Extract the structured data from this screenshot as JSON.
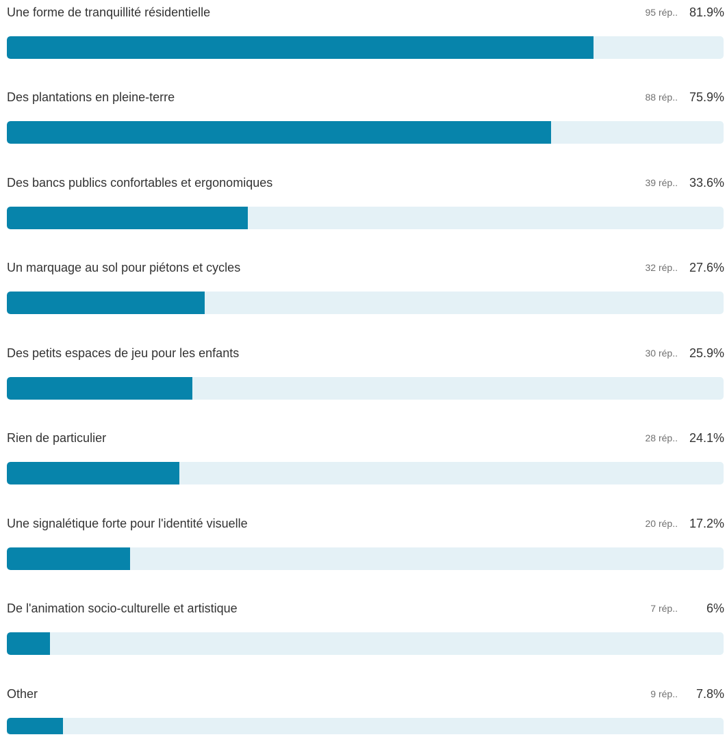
{
  "colors": {
    "bar_fill": "#0784ab",
    "bar_track": "#e4f1f6",
    "label_text": "#333333",
    "count_text": "#707070"
  },
  "chart_data": {
    "type": "bar",
    "orientation": "horizontal",
    "categories": [
      "Une forme de tranquillité résidentielle",
      "Des plantations en pleine-terre",
      "Des bancs publics confortables et ergonomiques",
      "Un marquage au sol pour piétons et cycles",
      "Des petits espaces de jeu pour les enfants",
      "Rien de particulier",
      "Une signalétique forte pour l'identité visuelle",
      "De l'animation socio-culturelle et artistique",
      "Other"
    ],
    "values": [
      81.9,
      75.9,
      33.6,
      27.6,
      25.9,
      24.1,
      17.2,
      6,
      7.8
    ],
    "counts": [
      95,
      88,
      39,
      32,
      30,
      28,
      20,
      7,
      9
    ],
    "xlim": [
      0,
      100
    ],
    "grid": false,
    "legend": "none"
  },
  "items": [
    {
      "label": "Une forme de tranquillité résidentielle",
      "count_text": "95 rép..",
      "pct_text": "81.9%",
      "pct": 81.9
    },
    {
      "label": "Des plantations en pleine-terre",
      "count_text": "88 rép..",
      "pct_text": "75.9%",
      "pct": 75.9
    },
    {
      "label": "Des bancs publics confortables et ergonomiques",
      "count_text": "39 rép..",
      "pct_text": "33.6%",
      "pct": 33.6
    },
    {
      "label": "Un marquage au sol pour piétons et cycles",
      "count_text": "32 rép..",
      "pct_text": "27.6%",
      "pct": 27.6
    },
    {
      "label": "Des petits espaces de jeu pour les enfants",
      "count_text": "30 rép..",
      "pct_text": "25.9%",
      "pct": 25.9
    },
    {
      "label": "Rien de particulier",
      "count_text": "28 rép..",
      "pct_text": "24.1%",
      "pct": 24.1
    },
    {
      "label": "Une signalétique forte pour l'identité visuelle",
      "count_text": "20 rép..",
      "pct_text": "17.2%",
      "pct": 17.2
    },
    {
      "label": "De l'animation socio-culturelle et artistique",
      "count_text": "7 rép..",
      "pct_text": "6%",
      "pct": 6
    },
    {
      "label": "Other",
      "count_text": "9 rép..",
      "pct_text": "7.8%",
      "pct": 7.8
    }
  ]
}
